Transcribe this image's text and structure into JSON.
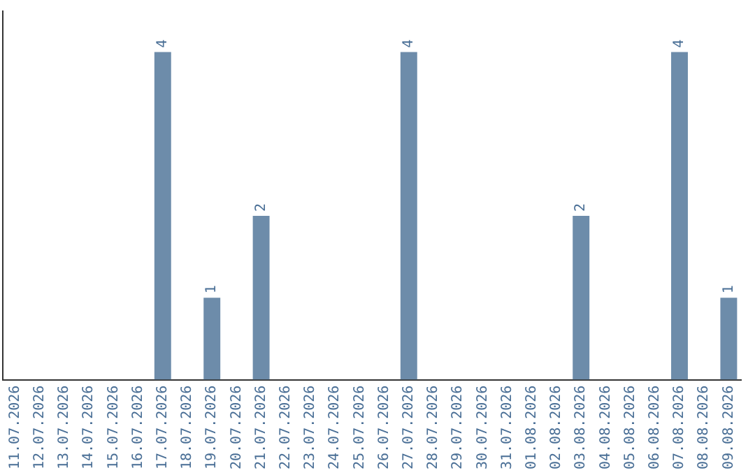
{
  "chart_data": {
    "type": "bar",
    "categories": [
      "11.07.2026",
      "12.07.2026",
      "13.07.2026",
      "14.07.2026",
      "15.07.2026",
      "16.07.2026",
      "17.07.2026",
      "18.07.2026",
      "19.07.2026",
      "20.07.2026",
      "21.07.2026",
      "22.07.2026",
      "23.07.2026",
      "24.07.2026",
      "25.07.2026",
      "26.07.2026",
      "27.07.2026",
      "28.07.2026",
      "29.07.2026",
      "30.07.2026",
      "31.07.2026",
      "01.08.2026",
      "02.08.2026",
      "03.08.2026",
      "04.08.2026",
      "05.08.2026",
      "06.08.2026",
      "07.08.2026",
      "08.08.2026",
      "09.08.2026"
    ],
    "values": [
      0,
      0,
      0,
      0,
      0,
      0,
      4,
      0,
      1,
      0,
      2,
      0,
      0,
      0,
      0,
      0,
      4,
      0,
      0,
      0,
      0,
      0,
      0,
      2,
      0,
      0,
      0,
      4,
      0,
      1
    ],
    "value_labels": [
      null,
      null,
      null,
      null,
      null,
      null,
      "4",
      null,
      "1",
      null,
      "2",
      null,
      null,
      null,
      null,
      null,
      "4",
      null,
      null,
      null,
      null,
      null,
      null,
      "2",
      null,
      null,
      null,
      "4",
      null,
      "1"
    ],
    "color": "#6d8caa",
    "tick_labels": "x",
    "grid": false,
    "legend": false
  }
}
